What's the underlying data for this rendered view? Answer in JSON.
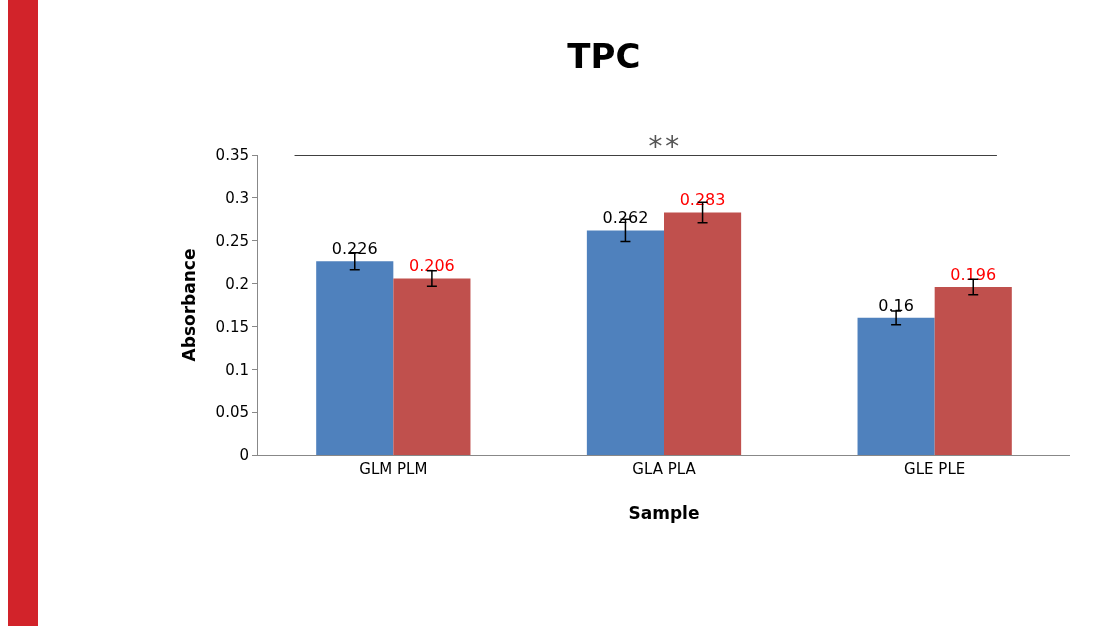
{
  "chart_data": {
    "type": "bar",
    "title": "TPC",
    "xlabel": "Sample",
    "ylabel": "Absorbance",
    "categories": [
      "GLM PLM",
      "GLA PLA",
      "GLE PLE"
    ],
    "series": [
      {
        "color": "#4f81bd",
        "values": [
          0.226,
          0.262,
          0.16
        ],
        "errors": [
          0.01,
          0.013,
          0.008
        ]
      },
      {
        "color": "#c0504d",
        "values": [
          0.206,
          0.283,
          0.196
        ],
        "errors": [
          0.009,
          0.012,
          0.009
        ]
      }
    ],
    "data_labels": true,
    "annotations": [
      "**"
    ],
    "ylim": [
      0,
      0.35
    ],
    "yticks": [
      0,
      0.05,
      0.1,
      0.15,
      0.2,
      0.25,
      0.3,
      0.35
    ],
    "grid": false,
    "legend": false
  }
}
